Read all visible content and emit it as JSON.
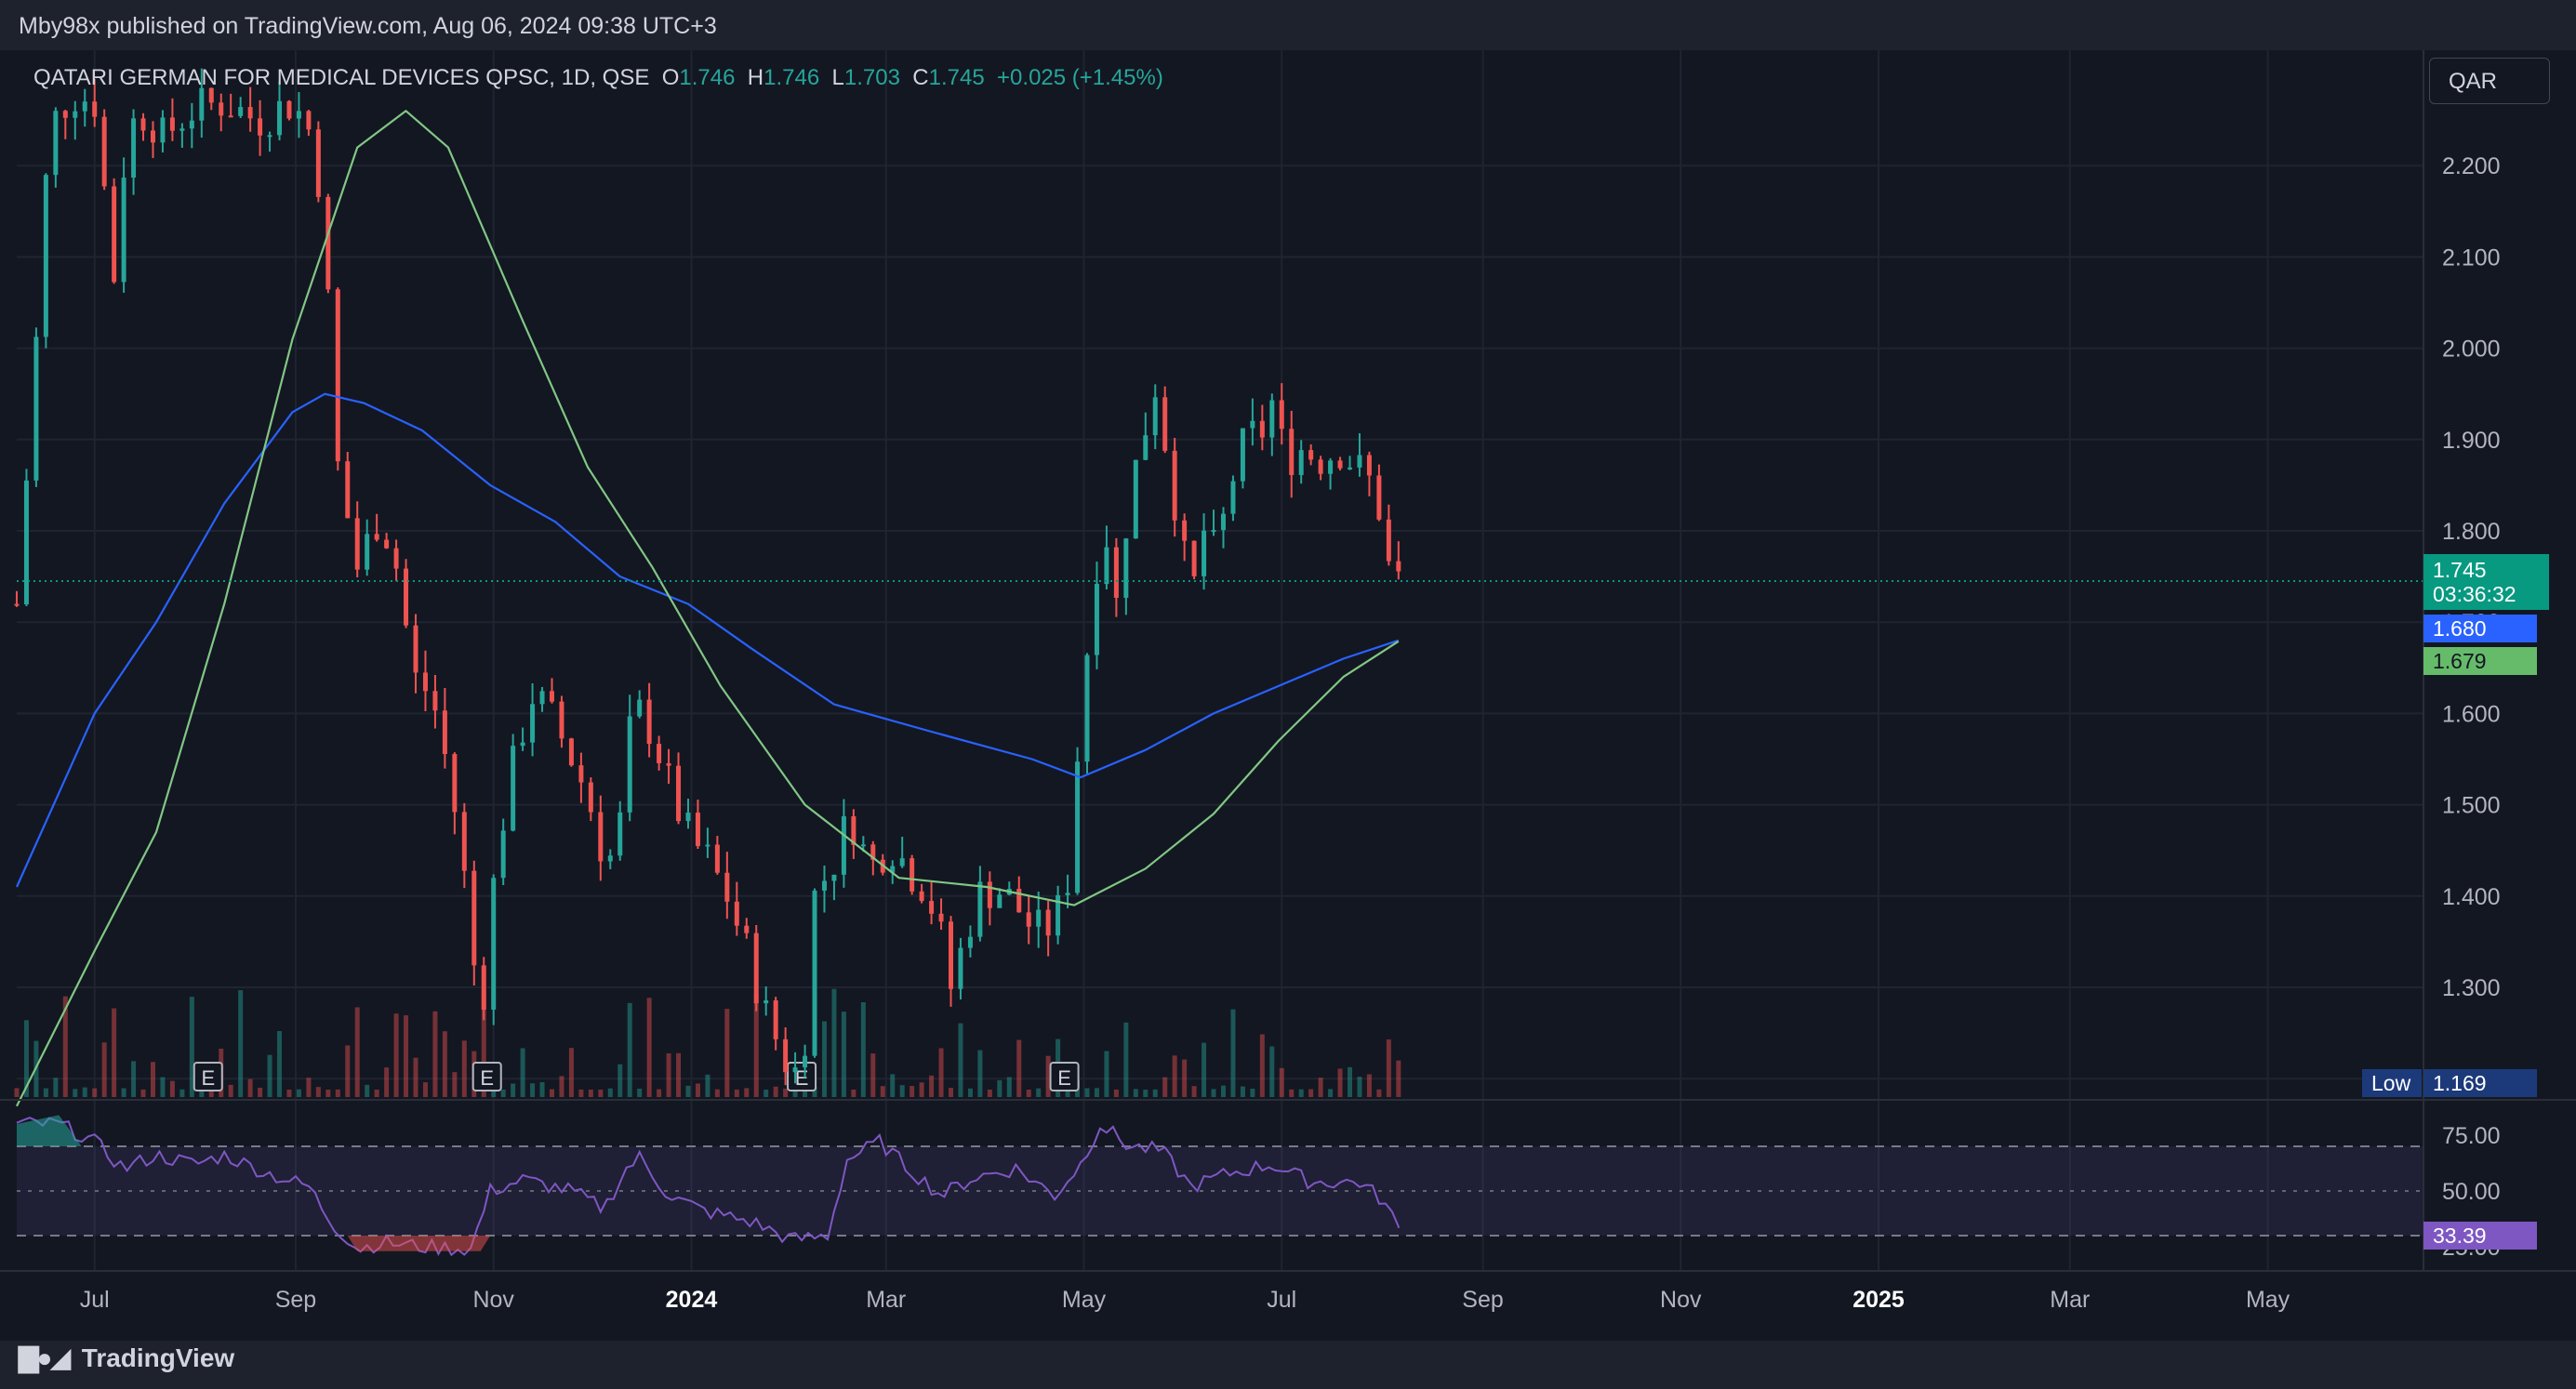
{
  "header": {
    "publish_text": "Mby98x published on TradingView.com, Aug 06, 2024 09:38 UTC+3"
  },
  "legend": {
    "symbol_text": "QATARI GERMAN FOR MEDICAL DEVICES QPSC, 1D, QSE",
    "o_label": "O",
    "o_value": "1.746",
    "h_label": "H",
    "h_value": "1.746",
    "l_label": "L",
    "l_value": "1.703",
    "c_label": "C",
    "c_value": "1.745",
    "change": "+0.025 (+1.45%)"
  },
  "currency_button": "QAR",
  "price_tags": {
    "last_price": "1.745",
    "countdown": "03:36:32",
    "ma200_value": "1.680",
    "ma100_value": "1.679",
    "low_label": "Low",
    "low_value": "1.169",
    "rsi_value": "33.39"
  },
  "footer": {
    "brand": "TradingView"
  },
  "colors": {
    "background": "#131722",
    "up": "#26a69a",
    "down": "#ef5350",
    "ma_blue": "#2962ff",
    "ma_green": "#81c784",
    "rsi_line": "#7e57c2",
    "last_price_tag": "#089981"
  },
  "chart_data": [
    {
      "type": "candlestick",
      "title": "QATARI GERMAN FOR MEDICAL DEVICES QPSC, 1D, QSE",
      "ylim": [
        1.17,
        2.3
      ],
      "y_ticks": [
        "2.200",
        "2.100",
        "2.000",
        "1.900",
        "1.800",
        "1.700",
        "1.600",
        "1.500",
        "1.400",
        "1.300",
        "1.200"
      ],
      "x_ticks": [
        "Jul",
        "Sep",
        "Nov",
        "2024",
        "Mar",
        "May",
        "Jul",
        "Sep",
        "Nov",
        "2025",
        "Mar",
        "May"
      ],
      "x_range": [
        "2023-06-07",
        "2025-06-18"
      ],
      "close_path": [
        [
          "2023-06-07",
          1.72
        ],
        [
          "2023-06-12",
          1.95
        ],
        [
          "2023-06-17",
          2.24
        ],
        [
          "2023-06-24",
          2.28
        ],
        [
          "2023-07-01",
          2.27
        ],
        [
          "2023-07-07",
          2.08
        ],
        [
          "2023-07-11",
          2.24
        ],
        [
          "2023-07-17",
          2.26
        ],
        [
          "2023-07-22",
          2.23
        ],
        [
          "2023-07-30",
          2.26
        ],
        [
          "2023-08-10",
          2.27
        ],
        [
          "2023-08-20",
          2.25
        ],
        [
          "2023-08-31",
          2.27
        ],
        [
          "2023-09-05",
          2.24
        ],
        [
          "2023-09-09",
          2.17
        ],
        [
          "2023-09-14",
          1.87
        ],
        [
          "2023-09-20",
          1.76
        ],
        [
          "2023-09-27",
          1.82
        ],
        [
          "2023-10-03",
          1.75
        ],
        [
          "2023-10-07",
          1.64
        ],
        [
          "2023-10-13",
          1.62
        ],
        [
          "2023-10-19",
          1.52
        ],
        [
          "2023-10-23",
          1.42
        ],
        [
          "2023-10-28",
          1.26
        ],
        [
          "2023-11-02",
          1.45
        ],
        [
          "2023-11-08",
          1.56
        ],
        [
          "2023-11-13",
          1.62
        ],
        [
          "2023-11-18",
          1.6
        ],
        [
          "2023-11-24",
          1.56
        ],
        [
          "2023-11-30",
          1.51
        ],
        [
          "2023-12-06",
          1.43
        ],
        [
          "2023-12-10",
          1.48
        ],
        [
          "2023-12-14",
          1.61
        ],
        [
          "2023-12-20",
          1.58
        ],
        [
          "2023-12-26",
          1.51
        ],
        [
          "2024-01-01",
          1.46
        ],
        [
          "2024-01-06",
          1.44
        ],
        [
          "2024-01-12",
          1.4
        ],
        [
          "2024-01-18",
          1.34
        ],
        [
          "2024-01-24",
          1.27
        ],
        [
          "2024-01-30",
          1.22
        ],
        [
          "2024-02-04",
          1.2
        ],
        [
          "2024-02-08",
          1.4
        ],
        [
          "2024-02-14",
          1.44
        ],
        [
          "2024-02-19",
          1.49
        ],
        [
          "2024-02-25",
          1.43
        ],
        [
          "2024-03-02",
          1.46
        ],
        [
          "2024-03-08",
          1.43
        ],
        [
          "2024-03-13",
          1.41
        ],
        [
          "2024-03-17",
          1.37
        ],
        [
          "2024-03-21",
          1.3
        ],
        [
          "2024-03-25",
          1.35
        ],
        [
          "2024-03-29",
          1.4
        ],
        [
          "2024-04-04",
          1.41
        ],
        [
          "2024-04-10",
          1.39
        ],
        [
          "2024-04-16",
          1.36
        ],
        [
          "2024-04-22",
          1.37
        ],
        [
          "2024-04-26",
          1.42
        ],
        [
          "2024-04-30",
          1.6
        ],
        [
          "2024-05-04",
          1.74
        ],
        [
          "2024-05-07",
          1.82
        ],
        [
          "2024-05-11",
          1.72
        ],
        [
          "2024-05-15",
          1.84
        ],
        [
          "2024-05-19",
          1.9
        ],
        [
          "2024-05-23",
          1.96
        ],
        [
          "2024-05-27",
          1.88
        ],
        [
          "2024-05-31",
          1.79
        ],
        [
          "2024-06-03",
          1.72
        ],
        [
          "2024-06-07",
          1.8
        ],
        [
          "2024-06-11",
          1.77
        ],
        [
          "2024-06-15",
          1.85
        ],
        [
          "2024-06-20",
          1.9
        ],
        [
          "2024-06-25",
          1.91
        ],
        [
          "2024-06-28",
          1.94
        ],
        [
          "2024-07-02",
          1.88
        ],
        [
          "2024-07-07",
          1.89
        ],
        [
          "2024-07-13",
          1.88
        ],
        [
          "2024-07-19",
          1.89
        ],
        [
          "2024-07-24",
          1.87
        ],
        [
          "2024-07-29",
          1.85
        ],
        [
          "2024-08-02",
          1.8
        ],
        [
          "2024-08-04",
          1.72
        ],
        [
          "2024-08-05",
          1.72
        ],
        [
          "2024-08-06",
          1.745
        ]
      ],
      "ma_200": [
        [
          "2023-06-07",
          1.41
        ],
        [
          "2023-07-01",
          1.6
        ],
        [
          "2023-07-20",
          1.7
        ],
        [
          "2023-08-10",
          1.83
        ],
        [
          "2023-08-31",
          1.93
        ],
        [
          "2023-09-10",
          1.95
        ],
        [
          "2023-09-22",
          1.94
        ],
        [
          "2023-10-10",
          1.91
        ],
        [
          "2023-10-31",
          1.85
        ],
        [
          "2023-11-20",
          1.81
        ],
        [
          "2023-12-10",
          1.75
        ],
        [
          "2023-12-31",
          1.72
        ],
        [
          "2024-01-20",
          1.67
        ],
        [
          "2024-02-14",
          1.61
        ],
        [
          "2024-03-15",
          1.58
        ],
        [
          "2024-04-15",
          1.55
        ],
        [
          "2024-04-30",
          1.53
        ],
        [
          "2024-05-20",
          1.56
        ],
        [
          "2024-06-10",
          1.6
        ],
        [
          "2024-06-30",
          1.63
        ],
        [
          "2024-07-20",
          1.66
        ],
        [
          "2024-08-06",
          1.68
        ]
      ],
      "ma_100": [
        [
          "2023-06-07",
          1.17
        ],
        [
          "2023-07-01",
          1.34
        ],
        [
          "2023-07-20",
          1.47
        ],
        [
          "2023-08-10",
          1.72
        ],
        [
          "2023-08-31",
          2.01
        ],
        [
          "2023-09-20",
          2.22
        ],
        [
          "2023-10-05",
          2.26
        ],
        [
          "2023-10-18",
          2.22
        ],
        [
          "2023-11-10",
          2.03
        ],
        [
          "2023-11-30",
          1.87
        ],
        [
          "2023-12-20",
          1.76
        ],
        [
          "2024-01-10",
          1.63
        ],
        [
          "2024-02-05",
          1.5
        ],
        [
          "2024-03-05",
          1.42
        ],
        [
          "2024-04-01",
          1.41
        ],
        [
          "2024-04-28",
          1.39
        ],
        [
          "2024-05-20",
          1.43
        ],
        [
          "2024-06-10",
          1.49
        ],
        [
          "2024-06-30",
          1.57
        ],
        [
          "2024-07-20",
          1.64
        ],
        [
          "2024-08-06",
          1.679
        ]
      ]
    },
    {
      "type": "line",
      "title": "RSI",
      "ylim": [
        20,
        90
      ],
      "y_ticks": [
        "75.00",
        "50.00",
        "25.00"
      ],
      "bands": [
        30,
        50,
        70
      ],
      "values": [
        [
          "2023-06-07",
          80
        ],
        [
          "2023-06-20",
          80
        ],
        [
          "2023-07-01",
          72
        ],
        [
          "2023-07-10",
          60
        ],
        [
          "2023-07-20",
          66
        ],
        [
          "2023-08-01",
          62
        ],
        [
          "2023-08-10",
          66
        ],
        [
          "2023-08-25",
          57
        ],
        [
          "2023-09-05",
          52
        ],
        [
          "2023-09-12",
          36
        ],
        [
          "2023-09-20",
          24
        ],
        [
          "2023-09-28",
          27
        ],
        [
          "2023-10-10",
          25
        ],
        [
          "2023-10-25",
          24
        ],
        [
          "2023-10-31",
          50
        ],
        [
          "2023-11-10",
          55
        ],
        [
          "2023-11-25",
          50
        ],
        [
          "2023-12-05",
          42
        ],
        [
          "2023-12-12",
          60
        ],
        [
          "2023-12-16",
          65
        ],
        [
          "2023-12-25",
          48
        ],
        [
          "2024-01-05",
          41
        ],
        [
          "2024-01-20",
          36
        ],
        [
          "2024-02-01",
          28
        ],
        [
          "2024-02-12",
          30
        ],
        [
          "2024-02-18",
          64
        ],
        [
          "2024-02-28",
          72
        ],
        [
          "2024-03-08",
          60
        ],
        [
          "2024-03-18",
          48
        ],
        [
          "2024-03-28",
          56
        ],
        [
          "2024-04-10",
          60
        ],
        [
          "2024-04-22",
          48
        ],
        [
          "2024-04-30",
          62
        ],
        [
          "2024-05-06",
          80
        ],
        [
          "2024-05-15",
          70
        ],
        [
          "2024-05-25",
          68
        ],
        [
          "2024-06-03",
          52
        ],
        [
          "2024-06-15",
          58
        ],
        [
          "2024-06-28",
          62
        ],
        [
          "2024-07-10",
          54
        ],
        [
          "2024-07-25",
          54
        ],
        [
          "2024-08-01",
          46
        ],
        [
          "2024-08-06",
          33.39
        ]
      ]
    }
  ]
}
